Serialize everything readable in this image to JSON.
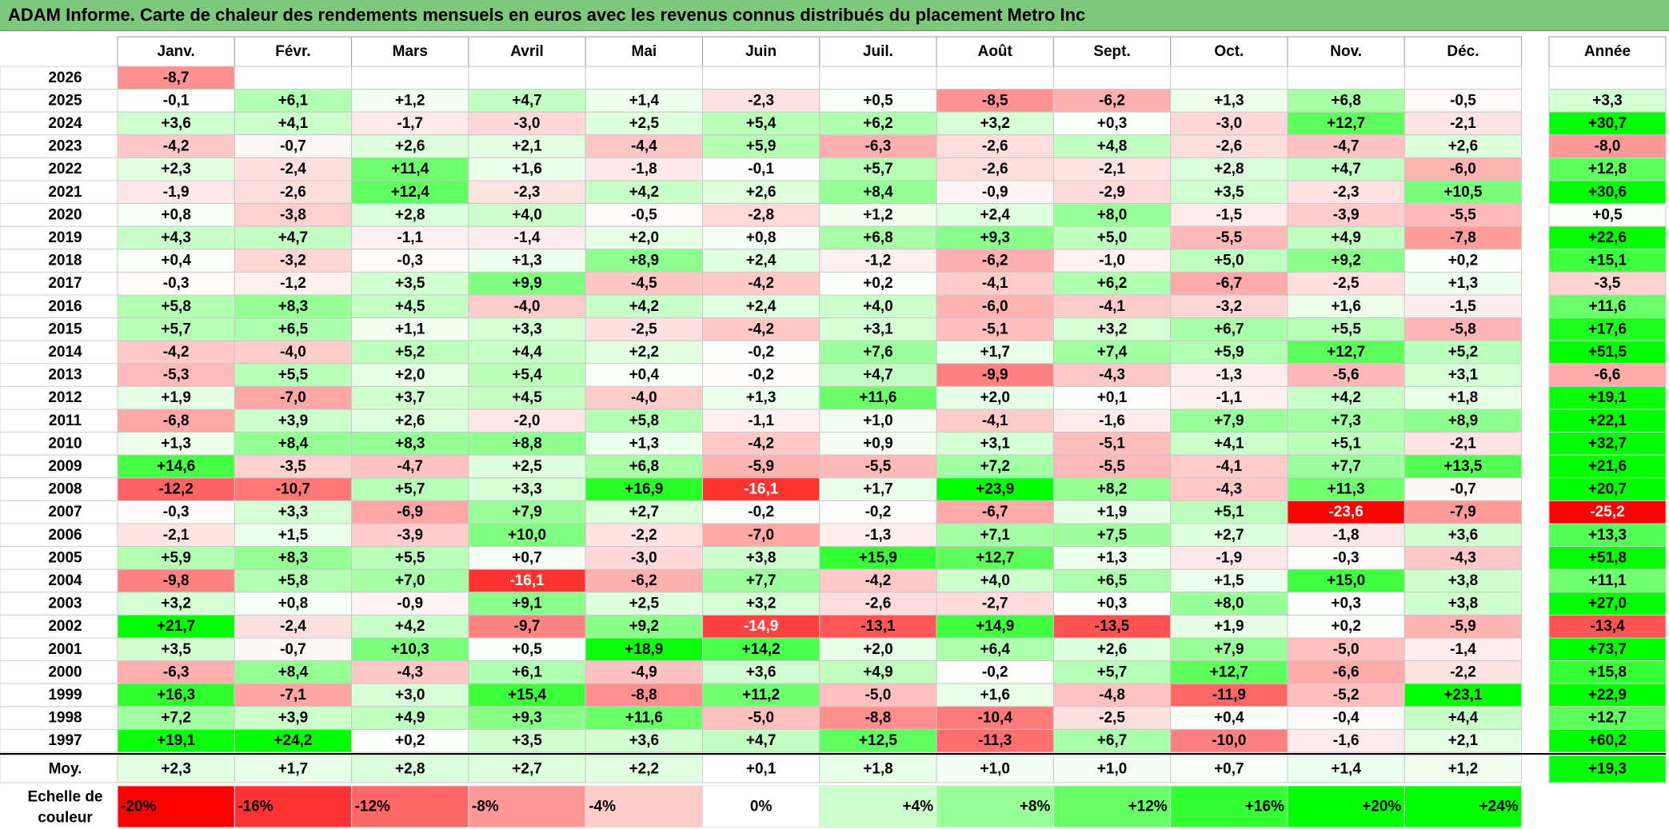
{
  "title": "ADAM Informe. Carte de chaleur des rendements mensuels en euros avec les revenus connus distribués du placement Metro Inc",
  "chart_data": {
    "type": "heatmap",
    "columns": [
      "Janv.",
      "Févr.",
      "Mars",
      "Avril",
      "Mai",
      "Juin",
      "Juil.",
      "Août",
      "Sept.",
      "Oct.",
      "Nov.",
      "Déc."
    ],
    "year_header": "Année",
    "rows": [
      {
        "year": "2026",
        "months": [
          "-8,7",
          "",
          "",
          "",
          "",
          "",
          "",
          "",
          "",
          "",
          "",
          ""
        ],
        "annual": ""
      },
      {
        "year": "2025",
        "months": [
          "-0,1",
          "+6,1",
          "+1,2",
          "+4,7",
          "+1,4",
          "-2,3",
          "+0,5",
          "-8,5",
          "-6,2",
          "+1,3",
          "+6,8",
          "-0,5"
        ],
        "annual": "+3,3"
      },
      {
        "year": "2024",
        "months": [
          "+3,6",
          "+4,1",
          "-1,7",
          "-3,0",
          "+2,5",
          "+5,4",
          "+6,2",
          "+3,2",
          "+0,3",
          "-3,0",
          "+12,7",
          "-2,1"
        ],
        "annual": "+30,7"
      },
      {
        "year": "2023",
        "months": [
          "-4,2",
          "-0,7",
          "+2,6",
          "+2,1",
          "-4,4",
          "+5,9",
          "-6,3",
          "-2,6",
          "+4,8",
          "-2,6",
          "-4,7",
          "+2,6"
        ],
        "annual": "-8,0"
      },
      {
        "year": "2022",
        "months": [
          "+2,3",
          "-2,4",
          "+11,4",
          "+1,6",
          "-1,8",
          "-0,1",
          "+5,7",
          "-2,6",
          "-2,1",
          "+2,8",
          "+4,7",
          "-6,0"
        ],
        "annual": "+12,8"
      },
      {
        "year": "2021",
        "months": [
          "-1,9",
          "-2,6",
          "+12,4",
          "-2,3",
          "+4,2",
          "+2,6",
          "+8,4",
          "-0,9",
          "-2,9",
          "+3,5",
          "-2,3",
          "+10,5"
        ],
        "annual": "+30,6"
      },
      {
        "year": "2020",
        "months": [
          "+0,8",
          "-3,8",
          "+2,8",
          "+4,0",
          "-0,5",
          "-2,8",
          "+1,2",
          "+2,4",
          "+8,0",
          "-1,5",
          "-3,9",
          "-5,5"
        ],
        "annual": "+0,5"
      },
      {
        "year": "2019",
        "months": [
          "+4,3",
          "+4,7",
          "-1,1",
          "-1,4",
          "+2,0",
          "+0,8",
          "+6,8",
          "+9,3",
          "+5,0",
          "-5,5",
          "+4,9",
          "-7,8"
        ],
        "annual": "+22,6"
      },
      {
        "year": "2018",
        "months": [
          "+0,4",
          "-3,2",
          "-0,3",
          "+1,3",
          "+8,9",
          "+2,4",
          "-1,2",
          "-6,2",
          "-1,0",
          "+5,0",
          "+9,2",
          "+0,2"
        ],
        "annual": "+15,1"
      },
      {
        "year": "2017",
        "months": [
          "-0,3",
          "-1,2",
          "+3,5",
          "+9,9",
          "-4,5",
          "-4,2",
          "+0,2",
          "-4,1",
          "+6,2",
          "-6,7",
          "-2,5",
          "+1,3"
        ],
        "annual": "-3,5"
      },
      {
        "year": "2016",
        "months": [
          "+5,8",
          "+8,3",
          "+4,5",
          "-4,0",
          "+4,2",
          "+2,4",
          "+4,0",
          "-6,0",
          "-4,1",
          "-3,2",
          "+1,6",
          "-1,5"
        ],
        "annual": "+11,6"
      },
      {
        "year": "2015",
        "months": [
          "+5,7",
          "+6,5",
          "+1,1",
          "+3,3",
          "-2,5",
          "-4,2",
          "+3,1",
          "-5,1",
          "+3,2",
          "+6,7",
          "+5,5",
          "-5,8"
        ],
        "annual": "+17,6"
      },
      {
        "year": "2014",
        "months": [
          "-4,2",
          "-4,0",
          "+5,2",
          "+4,4",
          "+2,2",
          "-0,2",
          "+7,6",
          "+1,7",
          "+7,4",
          "+5,9",
          "+12,7",
          "+5,2"
        ],
        "annual": "+51,5"
      },
      {
        "year": "2013",
        "months": [
          "-5,3",
          "+5,5",
          "+2,0",
          "+5,4",
          "+0,4",
          "-0,2",
          "+4,7",
          "-9,9",
          "-4,3",
          "-1,3",
          "-5,6",
          "+3,1"
        ],
        "annual": "-6,6"
      },
      {
        "year": "2012",
        "months": [
          "+1,9",
          "-7,0",
          "+3,7",
          "+4,5",
          "-4,0",
          "+1,3",
          "+11,6",
          "+2,0",
          "+0,1",
          "-1,1",
          "+4,2",
          "+1,8"
        ],
        "annual": "+19,1"
      },
      {
        "year": "2011",
        "months": [
          "-6,8",
          "+3,9",
          "+2,6",
          "-2,0",
          "+5,8",
          "-1,1",
          "+1,0",
          "-4,1",
          "-1,6",
          "+7,9",
          "+7,3",
          "+8,9"
        ],
        "annual": "+22,1"
      },
      {
        "year": "2010",
        "months": [
          "+1,3",
          "+8,4",
          "+8,3",
          "+8,8",
          "+1,3",
          "-4,2",
          "+0,9",
          "+3,1",
          "-5,1",
          "+4,1",
          "+5,1",
          "-2,1"
        ],
        "annual": "+32,7"
      },
      {
        "year": "2009",
        "months": [
          "+14,6",
          "-3,5",
          "-4,7",
          "+2,5",
          "+6,8",
          "-5,9",
          "-5,5",
          "+7,2",
          "-5,5",
          "-4,1",
          "+7,7",
          "+13,5"
        ],
        "annual": "+21,6"
      },
      {
        "year": "2008",
        "months": [
          "-12,2",
          "-10,7",
          "+5,7",
          "+3,3",
          "+16,9",
          "-16,1",
          "+1,7",
          "+23,9",
          "+8,2",
          "-4,3",
          "+11,3",
          "-0,7"
        ],
        "annual": "+20,7"
      },
      {
        "year": "2007",
        "months": [
          "-0,3",
          "+3,3",
          "-6,9",
          "+7,9",
          "+2,7",
          "-0,2",
          "-0,2",
          "-6,7",
          "+1,9",
          "+5,1",
          "-23,6",
          "-7,9"
        ],
        "annual": "-25,2"
      },
      {
        "year": "2006",
        "months": [
          "-2,1",
          "+1,5",
          "-3,9",
          "+10,0",
          "-2,2",
          "-7,0",
          "-1,3",
          "+7,1",
          "+7,5",
          "+2,7",
          "-1,8",
          "+3,6"
        ],
        "annual": "+13,3"
      },
      {
        "year": "2005",
        "months": [
          "+5,9",
          "+8,3",
          "+5,5",
          "+0,7",
          "-3,0",
          "+3,8",
          "+15,9",
          "+12,7",
          "+1,3",
          "-1,9",
          "-0,3",
          "-4,3"
        ],
        "annual": "+51,8"
      },
      {
        "year": "2004",
        "months": [
          "-9,8",
          "+5,8",
          "+7,0",
          "-16,1",
          "-6,2",
          "+7,7",
          "-4,2",
          "+4,0",
          "+6,5",
          "+1,5",
          "+15,0",
          "+3,8"
        ],
        "annual": "+11,1"
      },
      {
        "year": "2003",
        "months": [
          "+3,2",
          "+0,8",
          "-0,9",
          "+9,1",
          "+2,5",
          "+3,2",
          "-2,6",
          "-2,7",
          "+0,3",
          "+8,0",
          "+0,3",
          "+3,8"
        ],
        "annual": "+27,0"
      },
      {
        "year": "2002",
        "months": [
          "+21,7",
          "-2,4",
          "+4,2",
          "-9,7",
          "+9,2",
          "-14,9",
          "-13,1",
          "+14,9",
          "-13,5",
          "+1,9",
          "+0,2",
          "-5,9"
        ],
        "annual": "-13,4"
      },
      {
        "year": "2001",
        "months": [
          "+3,5",
          "-0,7",
          "+10,3",
          "+0,5",
          "+18,9",
          "+14,2",
          "+2,0",
          "+6,4",
          "+2,6",
          "+7,9",
          "-5,0",
          "-1,4"
        ],
        "annual": "+73,7"
      },
      {
        "year": "2000",
        "months": [
          "-6,3",
          "+8,4",
          "-4,3",
          "+6,1",
          "-4,9",
          "+3,6",
          "+4,9",
          "-0,2",
          "+5,7",
          "+12,7",
          "-6,6",
          "-2,2"
        ],
        "annual": "+15,8"
      },
      {
        "year": "1999",
        "months": [
          "+16,3",
          "-7,1",
          "+3,0",
          "+15,4",
          "-8,8",
          "+11,2",
          "-5,0",
          "+1,6",
          "-4,8",
          "-11,9",
          "-5,2",
          "+23,1"
        ],
        "annual": "+22,9"
      },
      {
        "year": "1998",
        "months": [
          "+7,2",
          "+3,9",
          "+4,9",
          "+9,3",
          "+11,6",
          "-5,0",
          "-8,8",
          "-10,4",
          "-2,5",
          "+0,4",
          "-0,4",
          "+4,4"
        ],
        "annual": "+12,7"
      },
      {
        "year": "1997",
        "months": [
          "+19,1",
          "+24,2",
          "+0,2",
          "+3,5",
          "+3,6",
          "+4,7",
          "+12,5",
          "-11,3",
          "+6,7",
          "-10,0",
          "-1,6",
          "+2,1"
        ],
        "annual": "+60,2"
      }
    ],
    "average": {
      "label": "Moy.",
      "months": [
        "+2,3",
        "+1,7",
        "+2,8",
        "+2,7",
        "+2,2",
        "+0,1",
        "+1,8",
        "+1,0",
        "+1,0",
        "+0,7",
        "+1,4",
        "+1,2"
      ],
      "annual": "+19,3"
    },
    "scale": {
      "label_line1": "Echelle de",
      "label_line2": "couleur",
      "steps": [
        {
          "label": "-20%",
          "value": -20,
          "color": "#ff0000"
        },
        {
          "label": "-16%",
          "value": -16,
          "color": "#ff3333"
        },
        {
          "label": "-12%",
          "value": -12,
          "color": "#ff6666"
        },
        {
          "label": "-8%",
          "value": -8,
          "color": "#ff9999"
        },
        {
          "label": "-4%",
          "value": -4,
          "color": "#ffcccc"
        },
        {
          "label": "0%",
          "value": 0,
          "color": "#ffffff"
        },
        {
          "label": "+4%",
          "value": 4,
          "color": "#ccffcc"
        },
        {
          "label": "+8%",
          "value": 8,
          "color": "#99ff99"
        },
        {
          "label": "+12%",
          "value": 12,
          "color": "#66ff66"
        },
        {
          "label": "+16%",
          "value": 16,
          "color": "#33ff33"
        },
        {
          "label": "+20%",
          "value": 20,
          "color": "#00ff00"
        },
        {
          "label": "+24%",
          "value": 24,
          "color": "#00ff00"
        }
      ]
    }
  }
}
